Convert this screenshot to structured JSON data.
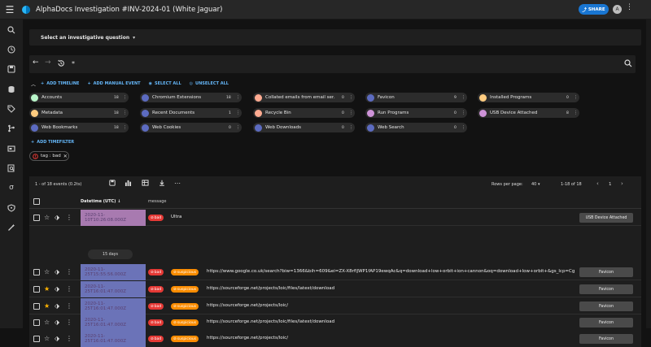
{
  "header": {
    "title": "AlphaDocs Investigation #INV-2024-01 (White Jaguar)",
    "share_label": "SHARE",
    "avatar_initial": "A"
  },
  "question_bar": {
    "label": "Select an investigative question"
  },
  "search": {
    "query": "*"
  },
  "actions": {
    "add_timeline": "ADD TIMELINE",
    "add_manual_event": "ADD MANUAL EVENT",
    "select_all": "SELECT ALL",
    "unselect_all": "UNSELECT ALL",
    "add_timefilter": "ADD TIMEFILTER"
  },
  "timelines": [
    {
      "name": "Accounts",
      "count": "18",
      "color": "#b9f6ca"
    },
    {
      "name": "Chromium Extensions",
      "count": "18",
      "color": "#5c6bc0"
    },
    {
      "name": "Collated emails from email ser...",
      "count": "0",
      "color": "#ffab91"
    },
    {
      "name": "Favicon",
      "count": "9",
      "color": "#5c6bc0"
    },
    {
      "name": "Installed Programs",
      "count": "0",
      "color": "#ffcc80"
    },
    {
      "name": "Metadata",
      "count": "18",
      "color": "#ffcc80"
    },
    {
      "name": "Recent Documents",
      "count": "1",
      "color": "#5c6bc0"
    },
    {
      "name": "Recycle Bin",
      "count": "0",
      "color": "#ffab91"
    },
    {
      "name": "Run Programs",
      "count": "0",
      "color": "#ce93d8"
    },
    {
      "name": "USB Device Attached",
      "count": "8",
      "color": "#ce93d8"
    },
    {
      "name": "Web Bookmarks",
      "count": "18",
      "color": "#5c6bc0"
    },
    {
      "name": "Web Cookies",
      "count": "0",
      "color": "#5c6bc0"
    },
    {
      "name": "Web Downloads",
      "count": "0",
      "color": "#5c6bc0"
    },
    {
      "name": "Web Search",
      "count": "0",
      "color": "#5c6bc0"
    }
  ],
  "filter_chip": {
    "label": "tag : bad"
  },
  "results": {
    "count_text": "1 - of 18 events (0.2ts)",
    "rows_per_page_label": "Rows per page:",
    "rows_per_page_value": "40",
    "range_text": "1-18 of 18",
    "page": "1",
    "col_datetime": "Datetime (UTC)",
    "col_message": "message",
    "gap_label": "15 days"
  },
  "events": [
    {
      "datetime": "2020-11-10T10:26:08.000Z",
      "tags": [
        "bad"
      ],
      "message": "Ultra",
      "type": "USB Device Attached",
      "starred": false,
      "dt_color": "#a87ab0"
    },
    {
      "datetime": "2020-11-25T15:55:56.000Z",
      "tags": [
        "bad",
        "suspicious"
      ],
      "message": "https://www.google.co.uk/search?biw=1366&bih=609&ei=ZX-X8rfIJWP1fAP19ewqAc&q=download+low+orbit+ion+cannon&oq=download+low+orbit+&gs_lcp=CgZw...",
      "type": "Favicon",
      "starred": false,
      "dt_color": "#6b73b8"
    },
    {
      "datetime": "2020-11-25T16:01:47.000Z",
      "tags": [
        "bad",
        "suspicious"
      ],
      "message": "https://sourceforge.net/projects/loic/files/latest/download",
      "type": "Favicon",
      "starred": true,
      "dt_color": "#6b73b8"
    },
    {
      "datetime": "2020-11-25T16:01:47.000Z",
      "tags": [
        "bad",
        "suspicious"
      ],
      "message": "https://sourceforge.net/projects/loic/",
      "type": "Favicon",
      "starred": true,
      "dt_color": "#6b73b8"
    },
    {
      "datetime": "2020-11-25T16:01:47.000Z",
      "tags": [
        "bad",
        "suspicious"
      ],
      "message": "https://sourceforge.net/projects/loic/files/latest/download",
      "type": "Favicon",
      "starred": false,
      "dt_color": "#6b73b8"
    },
    {
      "datetime": "2020-11-25T16:01:47.000Z",
      "tags": [
        "bad",
        "suspicious"
      ],
      "message": "https://sourceforge.net/projects/loic/",
      "type": "Favicon",
      "starred": false,
      "dt_color": "#6b73b8"
    }
  ],
  "colors": {
    "accent": "#1976d2",
    "link": "#64b5f6",
    "bad": "#e53935",
    "suspicious": "#fb8c00"
  }
}
